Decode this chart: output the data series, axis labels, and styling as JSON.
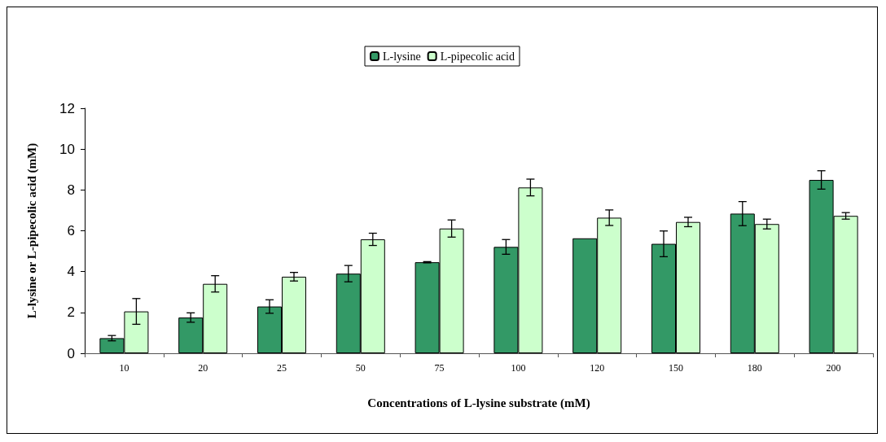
{
  "chart_data": {
    "type": "bar",
    "xlabel": "Concentrations of L-lysine substrate (mM)",
    "ylabel": "L-lysine or L-pipecolic acid (mM)",
    "categories": [
      "10",
      "20",
      "25",
      "50",
      "75",
      "100",
      "120",
      "150",
      "180",
      "200"
    ],
    "series": [
      {
        "name": "L-lysine",
        "color": "#339966",
        "values": [
          0.74,
          1.75,
          2.29,
          3.9,
          4.46,
          5.21,
          5.63,
          5.36,
          6.84,
          8.49
        ],
        "errors": [
          0.13,
          0.23,
          0.33,
          0.4,
          0.03,
          0.36,
          null,
          0.63,
          0.59,
          0.45
        ]
      },
      {
        "name": "L-pipecolic acid",
        "color": "#ccffcc",
        "values": [
          2.05,
          3.4,
          3.75,
          5.58,
          6.11,
          8.12,
          6.64,
          6.43,
          6.33,
          6.73
        ],
        "errors": [
          0.63,
          0.4,
          0.21,
          0.3,
          0.42,
          0.41,
          0.38,
          0.23,
          0.24,
          0.16
        ]
      }
    ],
    "ylim": [
      0,
      12
    ],
    "yticks": [
      0,
      2,
      4,
      6,
      8,
      10,
      12
    ],
    "grid": false,
    "legend": "top"
  }
}
